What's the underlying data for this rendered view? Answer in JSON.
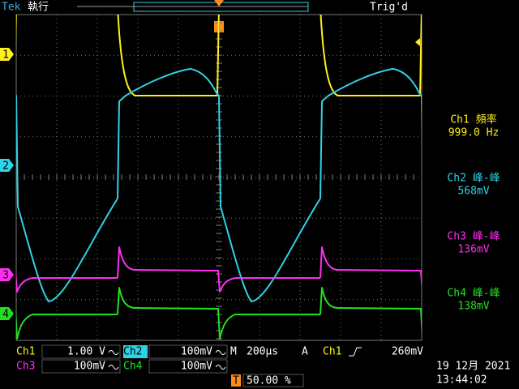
{
  "header": {
    "brand": "Tek",
    "status": "執行",
    "trigger_status": "Trig'd"
  },
  "channel_markers": [
    "1",
    "2",
    "3",
    "4"
  ],
  "measurements": [
    {
      "label": "Ch1 頻率",
      "value": "999.0 Hz"
    },
    {
      "label": "Ch2 峰-峰",
      "value": "568mV"
    },
    {
      "label": "Ch3 峰-峰",
      "value": "136mV"
    },
    {
      "label": "Ch4 峰-峰",
      "value": "138mV"
    }
  ],
  "channels": [
    {
      "label": "Ch1",
      "scale": "1.00 V"
    },
    {
      "label": "Ch2",
      "scale": "100mV"
    },
    {
      "label": "Ch3",
      "scale": "100mV"
    },
    {
      "label": "Ch4",
      "scale": "100mV"
    }
  ],
  "timebase": {
    "label": "M",
    "value": "200µs"
  },
  "trigger": {
    "label": "A",
    "source": "Ch1",
    "level": "260mV"
  },
  "position": {
    "marker": "T",
    "value": "50.00 %"
  },
  "date": "19 12月 2021",
  "time": "13:44:02"
}
